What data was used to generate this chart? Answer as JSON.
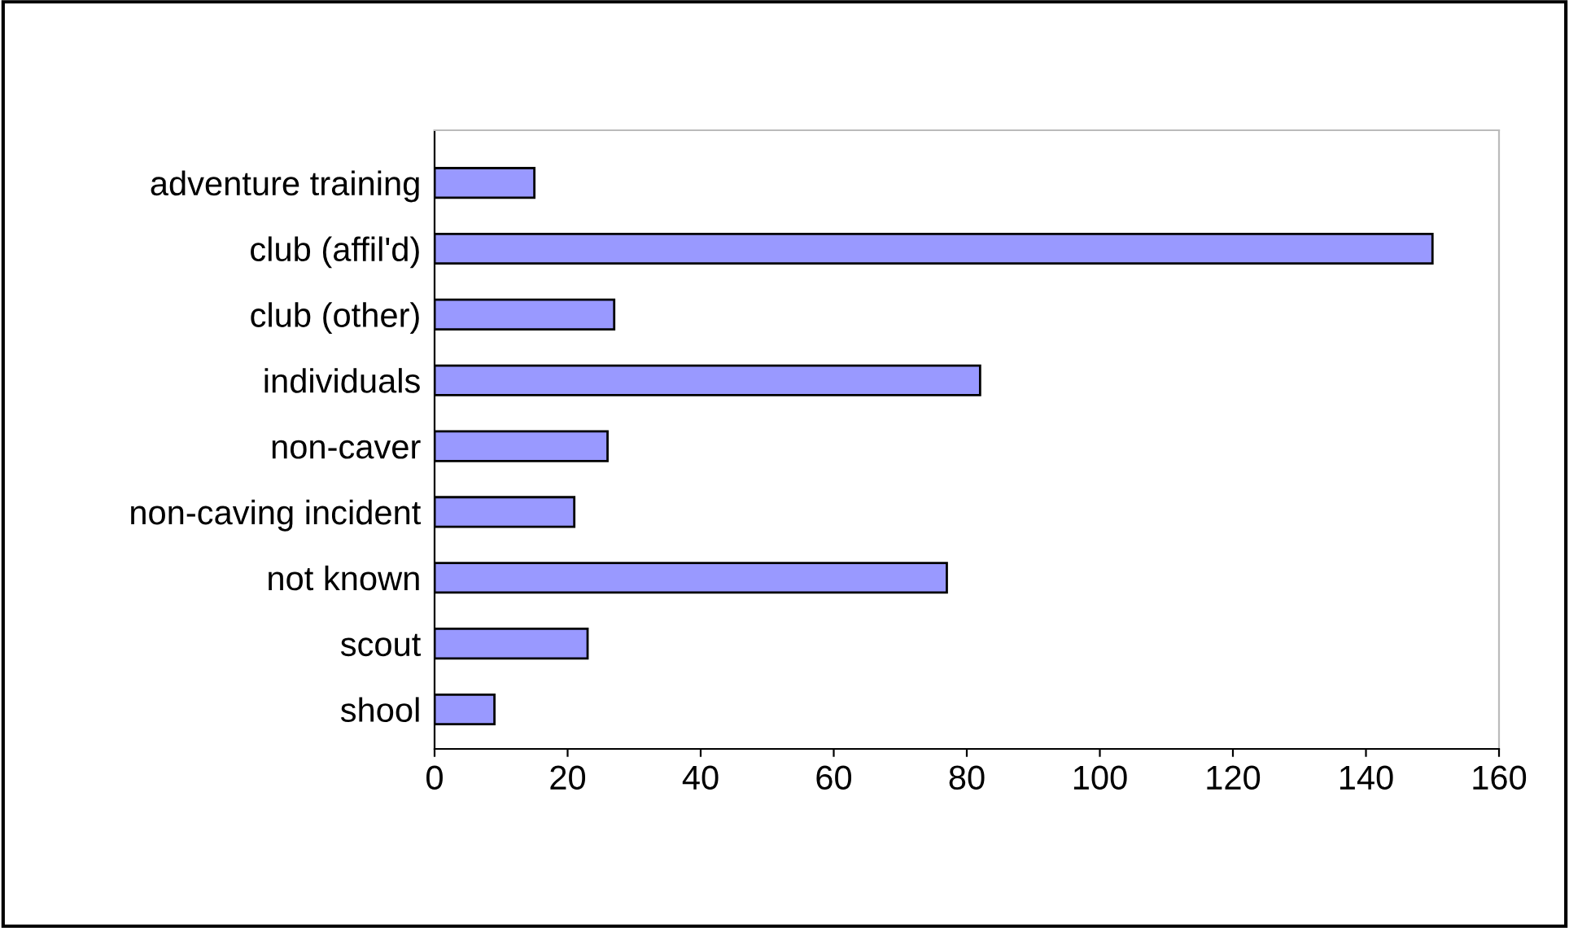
{
  "chart_data": {
    "type": "bar",
    "orientation": "horizontal",
    "categories": [
      "adventure training",
      "club (affil'd)",
      "club (other)",
      "individuals",
      "non-caver",
      "non-caving incident",
      "not known",
      "scout",
      "shool"
    ],
    "values": [
      15,
      150,
      27,
      82,
      26,
      21,
      77,
      23,
      9
    ],
    "color": "#9999ff",
    "xlim": [
      0,
      160
    ],
    "xticks": [
      0,
      20,
      40,
      60,
      80,
      100,
      120,
      140,
      160
    ],
    "grid": false,
    "legend": false
  }
}
